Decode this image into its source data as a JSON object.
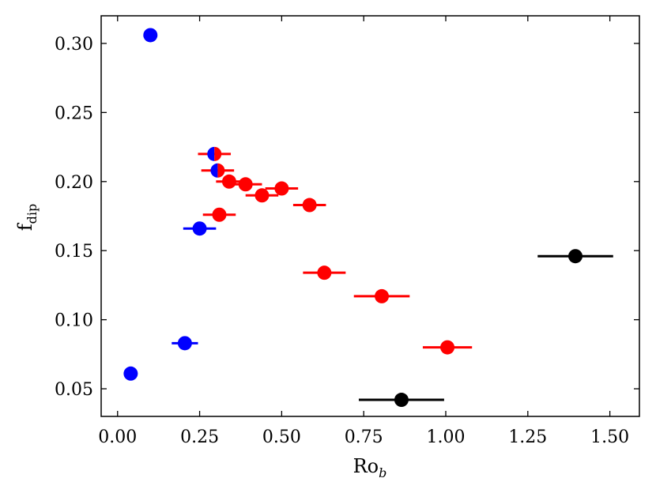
{
  "chart_data": {
    "type": "scatter",
    "title": "",
    "xlabel": "Ro",
    "xlabel_sub": "b",
    "ylabel": "f",
    "ylabel_sub": "dip",
    "xlim": [
      -0.05,
      1.59
    ],
    "ylim": [
      0.03,
      0.32
    ],
    "xticks": [
      0.0,
      0.25,
      0.5,
      0.75,
      1.0,
      1.25,
      1.5
    ],
    "xtick_labels": [
      "0.00",
      "0.25",
      "0.50",
      "0.75",
      "1.00",
      "1.25",
      "1.50"
    ],
    "yticks": [
      0.05,
      0.1,
      0.15,
      0.2,
      0.25,
      0.3
    ],
    "ytick_labels": [
      "0.05",
      "0.10",
      "0.15",
      "0.20",
      "0.25",
      "0.30"
    ],
    "grid": false,
    "colors": {
      "blue": "#0000ff",
      "red": "#ff0000",
      "black": "#000000"
    },
    "series": [
      {
        "color": "blue",
        "points": [
          {
            "x": 0.1,
            "y": 0.306
          },
          {
            "x": 0.04,
            "y": 0.061
          },
          {
            "x": 0.205,
            "y": 0.083,
            "xerr": 0.04
          },
          {
            "x": 0.25,
            "y": 0.166,
            "xerr": 0.05
          }
        ]
      },
      {
        "color": "red",
        "points": [
          {
            "x": 0.31,
            "y": 0.176,
            "xerr": 0.05
          },
          {
            "x": 0.34,
            "y": 0.2,
            "xerr": 0.04
          },
          {
            "x": 0.39,
            "y": 0.198,
            "xerr": 0.05
          },
          {
            "x": 0.44,
            "y": 0.19,
            "xerr": 0.05
          },
          {
            "x": 0.5,
            "y": 0.195,
            "xerr": 0.05
          },
          {
            "x": 0.585,
            "y": 0.183,
            "xerr": 0.05
          },
          {
            "x": 0.63,
            "y": 0.134,
            "xerr": 0.065
          },
          {
            "x": 0.805,
            "y": 0.117,
            "xerr": 0.085
          },
          {
            "x": 1.005,
            "y": 0.08,
            "xerr": 0.075
          }
        ]
      },
      {
        "color": "split",
        "points": [
          {
            "x": 0.295,
            "y": 0.22,
            "xerr": 0.05
          },
          {
            "x": 0.305,
            "y": 0.208,
            "xerr": 0.05
          }
        ]
      },
      {
        "color": "black",
        "points": [
          {
            "x": 0.865,
            "y": 0.042,
            "xerr": 0.13
          },
          {
            "x": 1.395,
            "y": 0.146,
            "xerr": 0.115
          }
        ]
      }
    ]
  }
}
